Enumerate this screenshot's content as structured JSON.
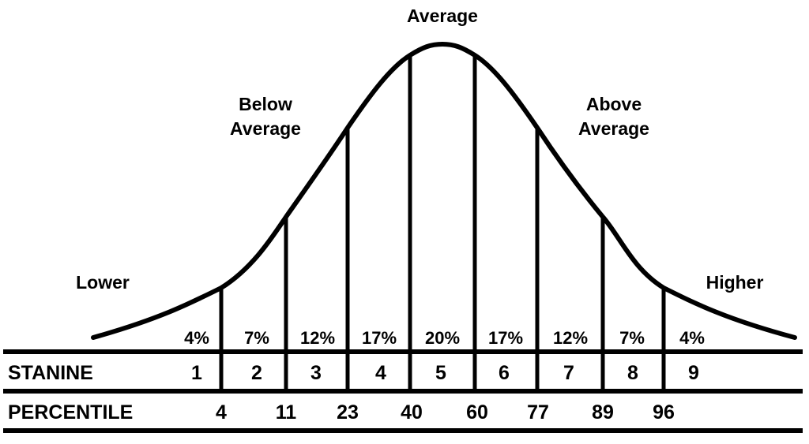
{
  "labels": {
    "average": "Average",
    "below_line1": "Below",
    "below_line2": "Average",
    "above_line1": "Above",
    "above_line2": "Average",
    "lower": "Lower",
    "higher": "Higher"
  },
  "bands": [
    {
      "stanine": "1",
      "percent": "4%"
    },
    {
      "stanine": "2",
      "percent": "7%"
    },
    {
      "stanine": "3",
      "percent": "12%"
    },
    {
      "stanine": "4",
      "percent": "17%"
    },
    {
      "stanine": "5",
      "percent": "20%"
    },
    {
      "stanine": "6",
      "percent": "17%"
    },
    {
      "stanine": "7",
      "percent": "12%"
    },
    {
      "stanine": "8",
      "percent": "7%"
    },
    {
      "stanine": "9",
      "percent": "4%"
    }
  ],
  "rows": {
    "stanine_label": "STANINE",
    "percentile_label": "PERCENTILE"
  },
  "percentiles": [
    "4",
    "11",
    "23",
    "40",
    "60",
    "77",
    "89",
    "96"
  ]
}
